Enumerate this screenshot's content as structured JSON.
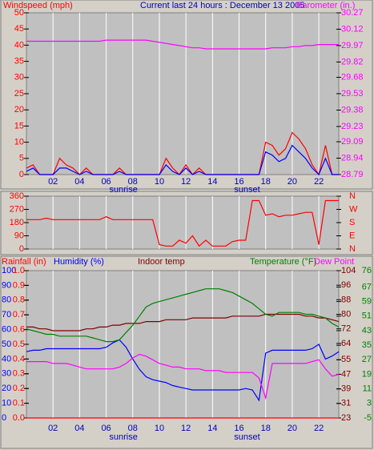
{
  "chart_data": [
    {
      "type": "line",
      "title": "Current last 24 hours : December 13 2005",
      "title_color": "#0000c0",
      "x": [
        0,
        0.5,
        1,
        1.5,
        2,
        2.5,
        3,
        3.5,
        4,
        4.5,
        5,
        5.5,
        6,
        6.5,
        7,
        7.5,
        8,
        8.5,
        9,
        9.5,
        10,
        10.5,
        11,
        11.5,
        12,
        12.5,
        13,
        13.5,
        14,
        14.5,
        15,
        15.5,
        16,
        16.5,
        17,
        17.5,
        18,
        18.5,
        19,
        19.5,
        20,
        20.5,
        21,
        21.5,
        22,
        22.5,
        23,
        23.5
      ],
      "xlim": [
        0,
        23.5
      ],
      "xticks": [
        {
          "value": 2,
          "label": "02"
        },
        {
          "value": 4,
          "label": "04"
        },
        {
          "value": 6,
          "label": "06"
        },
        {
          "value": 8,
          "label": "08"
        },
        {
          "value": 10,
          "label": "10"
        },
        {
          "value": 12,
          "label": "12"
        },
        {
          "value": 14,
          "label": "14"
        },
        {
          "value": 16,
          "label": "16"
        },
        {
          "value": 18,
          "label": "18"
        },
        {
          "value": 20,
          "label": "20"
        },
        {
          "value": 22,
          "label": "22"
        }
      ],
      "xtick_color": "#0000c0",
      "annotations": [
        {
          "text": "sunrise",
          "x": 7.3
        },
        {
          "text": "sunset",
          "x": 16.6
        }
      ],
      "ylim": [
        0,
        50
      ],
      "yticks": [
        0,
        5,
        10,
        15,
        20,
        25,
        30,
        35,
        40,
        45,
        50
      ],
      "ytick_color": "#ff0000",
      "y2lim": [
        28.79,
        30.27
      ],
      "y2ticks": [
        28.79,
        28.94,
        29.09,
        29.23,
        29.38,
        29.53,
        29.68,
        29.82,
        29.97,
        30.12,
        30.27
      ],
      "y2tick_color": "#ff00ff",
      "grid": true,
      "series": [
        {
          "name": "Windspeed (mph)",
          "color": "#ff0000",
          "values": [
            2,
            3,
            0,
            0,
            0,
            5,
            3,
            2,
            0,
            2,
            0,
            0,
            0,
            0,
            2,
            0,
            0,
            0,
            0,
            0,
            0,
            5,
            2,
            0,
            3,
            0,
            2,
            0,
            0,
            0,
            0,
            0,
            0,
            0,
            0,
            0,
            10,
            9,
            6,
            8,
            13,
            11,
            8,
            3,
            0,
            9,
            0,
            0
          ]
        },
        {
          "color": "#0000ff",
          "values": [
            1,
            2,
            0,
            0,
            0,
            2,
            2,
            1,
            0,
            1,
            0,
            0,
            0,
            0,
            1,
            0,
            0,
            0,
            0,
            0,
            0,
            3,
            1,
            0,
            2,
            0,
            1,
            0,
            0,
            0,
            0,
            0,
            0,
            0,
            0,
            0,
            7,
            6,
            4,
            5,
            9,
            7,
            5,
            2,
            0,
            5,
            0,
            0
          ]
        },
        {
          "name": "Barometer (in.)",
          "color": "#ff00ff",
          "axis": "y2",
          "values": [
            30.01,
            30.01,
            30.01,
            30.01,
            30.01,
            30.01,
            30.01,
            30.01,
            30.01,
            30.01,
            30.01,
            30.01,
            30.02,
            30.02,
            30.02,
            30.02,
            30.02,
            30.02,
            30.02,
            30.01,
            30.0,
            29.99,
            29.98,
            29.97,
            29.96,
            29.95,
            29.95,
            29.94,
            29.94,
            29.94,
            29.94,
            29.94,
            29.94,
            29.94,
            29.94,
            29.94,
            29.94,
            29.95,
            29.95,
            29.95,
            29.96,
            29.96,
            29.97,
            29.97,
            29.98,
            29.98,
            29.98,
            29.98
          ]
        }
      ]
    },
    {
      "type": "line",
      "x": [
        0,
        0.5,
        1,
        1.5,
        2,
        2.5,
        3,
        3.5,
        4,
        4.5,
        5,
        5.5,
        6,
        6.5,
        7,
        7.5,
        8,
        8.5,
        9,
        9.5,
        10,
        10.5,
        11,
        11.5,
        12,
        12.5,
        13,
        13.5,
        14,
        14.5,
        15,
        15.5,
        16,
        16.5,
        17,
        17.5,
        18,
        18.5,
        19,
        19.5,
        20,
        20.5,
        21,
        21.5,
        22,
        22.5,
        23,
        23.5
      ],
      "xlim": [
        0,
        23.5
      ],
      "xticks": [
        2,
        4,
        6,
        8,
        10,
        12,
        14,
        16,
        18,
        20,
        22
      ],
      "ylim": [
        0,
        360
      ],
      "yticks": [
        0,
        90,
        180,
        270,
        360
      ],
      "ytick_color": "#ff0000",
      "y2lim": [
        0,
        360
      ],
      "y2ticks": [
        {
          "value": 0,
          "label": "N"
        },
        {
          "value": 90,
          "label": "E"
        },
        {
          "value": 180,
          "label": "S"
        },
        {
          "value": 270,
          "label": "W"
        },
        {
          "value": 360,
          "label": "N"
        }
      ],
      "y2tick_color": "#ff0000",
      "grid": true,
      "series": [
        {
          "color": "#ff0000",
          "values": [
            200,
            200,
            200,
            210,
            200,
            200,
            200,
            200,
            200,
            200,
            200,
            200,
            220,
            200,
            200,
            200,
            200,
            200,
            200,
            200,
            30,
            20,
            20,
            60,
            40,
            90,
            20,
            60,
            20,
            20,
            20,
            50,
            60,
            60,
            330,
            330,
            230,
            240,
            220,
            230,
            230,
            240,
            250,
            250,
            30,
            330,
            330,
            330
          ]
        }
      ]
    },
    {
      "type": "line",
      "x": [
        0,
        0.5,
        1,
        1.5,
        2,
        2.5,
        3,
        3.5,
        4,
        4.5,
        5,
        5.5,
        6,
        6.5,
        7,
        7.5,
        8,
        8.5,
        9,
        9.5,
        10,
        10.5,
        11,
        11.5,
        12,
        12.5,
        13,
        13.5,
        14,
        14.5,
        15,
        15.5,
        16,
        16.5,
        17,
        17.5,
        18,
        18.5,
        19,
        19.5,
        20,
        20.5,
        21,
        21.5,
        22,
        22.5,
        23,
        23.5
      ],
      "xlim": [
        0,
        23.5
      ],
      "xticks": [
        {
          "value": 2,
          "label": "02"
        },
        {
          "value": 4,
          "label": "04"
        },
        {
          "value": 6,
          "label": "06"
        },
        {
          "value": 8,
          "label": "08"
        },
        {
          "value": 10,
          "label": "10"
        },
        {
          "value": 12,
          "label": "12"
        },
        {
          "value": 14,
          "label": "14"
        },
        {
          "value": 16,
          "label": "16"
        },
        {
          "value": 18,
          "label": "18"
        },
        {
          "value": 20,
          "label": "20"
        },
        {
          "value": 22,
          "label": "22"
        }
      ],
      "xtick_color": "#0000c0",
      "annotations": [
        {
          "text": "sunrise",
          "x": 7.3
        },
        {
          "text": "sunset",
          "x": 16.6
        }
      ],
      "ylim": [
        0,
        1
      ],
      "yticks": [
        {
          "value": 0,
          "label": "0.0"
        },
        0.1,
        0.2,
        0.3,
        0.4,
        0.5,
        0.6,
        0.7,
        0.8,
        0.9,
        {
          "value": 1,
          "label": "1.0"
        }
      ],
      "ytick_color": "#ff0000",
      "y3lim": [
        0,
        100
      ],
      "y3ticks": [
        0,
        10,
        20,
        30,
        40,
        50,
        60,
        70,
        80,
        90,
        100
      ],
      "y3tick_color": "#0000ff",
      "y2lim": [
        23,
        104
      ],
      "y2ticks": [
        23,
        31,
        39,
        47,
        55,
        64,
        72,
        80,
        88,
        96,
        104
      ],
      "y2tick_color": "#800000",
      "y4lim": [
        -5,
        76
      ],
      "y4ticks": [
        -5,
        3,
        11,
        19,
        27,
        35,
        43,
        51,
        59,
        67,
        76
      ],
      "y4tick_color": "#008000",
      "grid": true,
      "series": [
        {
          "name": "Rainfall (in)",
          "color": "#ff0000",
          "values": [
            0,
            0,
            0,
            0,
            0,
            0,
            0,
            0,
            0,
            0,
            0,
            0,
            0,
            0,
            0,
            0,
            0,
            0,
            0,
            0,
            0,
            0,
            0,
            0,
            0,
            0,
            0,
            0,
            0,
            0,
            0,
            0,
            0,
            0,
            0,
            0,
            0,
            0,
            0,
            0,
            0,
            0,
            0,
            0,
            0,
            0,
            0,
            0
          ]
        },
        {
          "name": "Humidity (%)",
          "color": "#0000ff",
          "axis": "y3",
          "values": [
            45,
            46,
            46,
            47,
            47,
            47,
            47,
            47,
            47,
            47,
            47,
            47,
            48,
            51,
            53,
            48,
            40,
            33,
            28,
            26,
            25,
            24,
            22,
            21,
            20,
            19,
            19,
            19,
            19,
            19,
            19,
            19,
            19,
            20,
            19,
            12,
            44,
            46,
            46,
            46,
            46,
            46,
            46,
            47,
            50,
            40,
            42,
            45
          ]
        },
        {
          "name": "Indoor temp",
          "color": "#800000",
          "axis": "y2",
          "values": [
            73,
            73,
            72,
            72,
            71,
            71,
            71,
            71,
            71,
            72,
            72,
            73,
            73,
            74,
            74,
            75,
            75,
            75,
            76,
            76,
            76,
            77,
            77,
            77,
            77,
            78,
            78,
            78,
            78,
            78,
            78,
            79,
            79,
            79,
            79,
            79,
            80,
            80,
            80,
            80,
            80,
            80,
            79,
            79,
            78,
            78,
            77,
            76
          ]
        },
        {
          "name": "Temperature (°F)",
          "color": "#008000",
          "axis": "y2",
          "values": [
            72,
            71,
            70,
            69,
            69,
            68,
            68,
            68,
            68,
            68,
            67,
            66,
            65,
            65,
            66,
            70,
            74,
            79,
            84,
            86,
            87,
            88,
            89,
            90,
            91,
            92,
            93,
            94,
            94,
            94,
            93,
            92,
            90,
            88,
            86,
            83,
            80,
            79,
            81,
            81,
            81,
            81,
            80,
            80,
            79,
            78,
            75,
            73
          ]
        },
        {
          "name": "Dew Point",
          "color": "#ff00ff",
          "axis": "y4",
          "values": [
            26,
            26,
            26,
            26,
            25,
            25,
            25,
            24,
            23,
            22,
            22,
            22,
            22,
            22,
            23,
            25,
            28,
            30,
            29,
            27,
            25,
            24,
            23,
            23,
            22,
            22,
            22,
            21,
            21,
            21,
            20,
            20,
            20,
            20,
            20,
            17,
            6,
            25,
            25,
            25,
            25,
            25,
            25,
            26,
            27,
            22,
            18,
            19
          ]
        }
      ]
    }
  ]
}
